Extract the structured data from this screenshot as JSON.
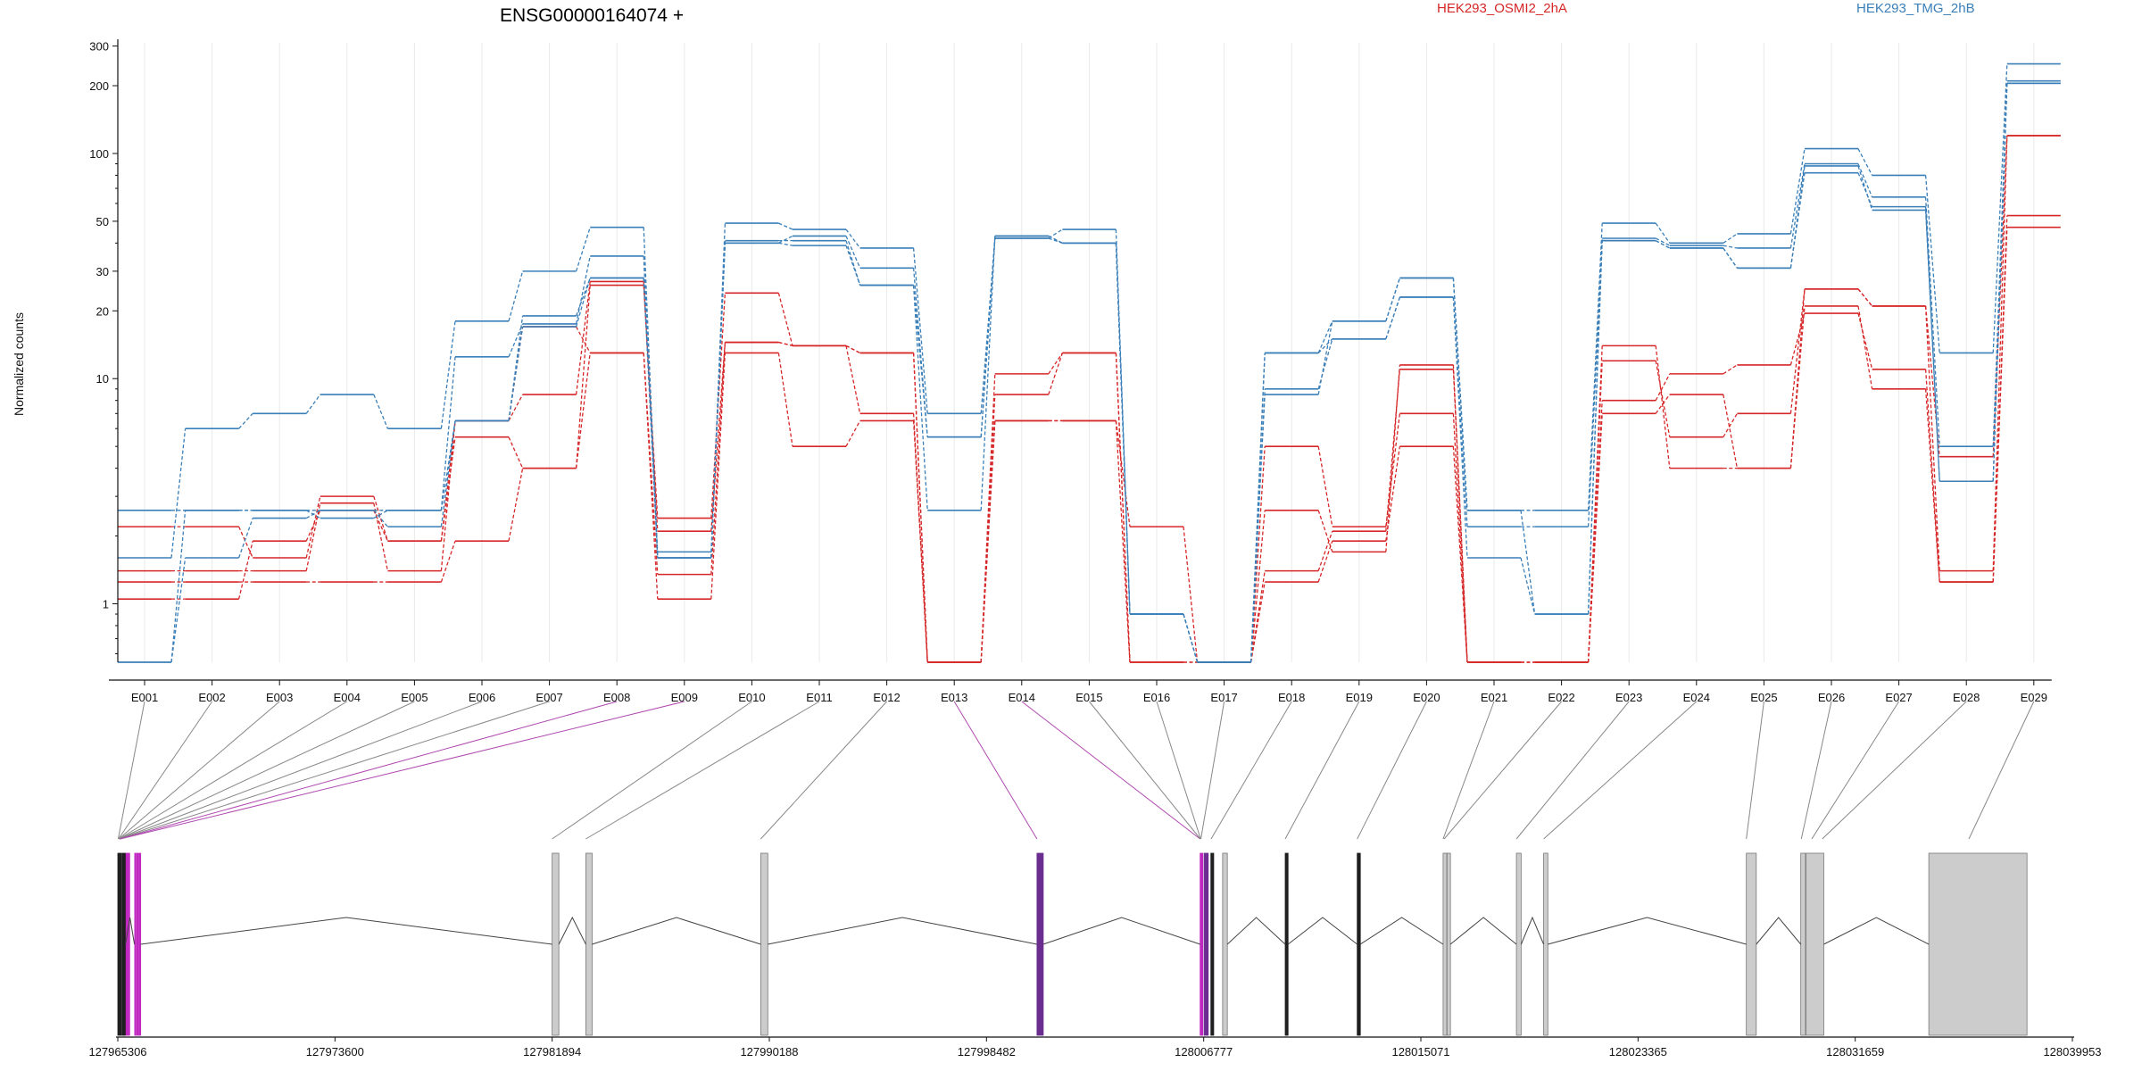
{
  "chart_data": {
    "type": "line",
    "title": "ENSG00000164074 +",
    "ylabel": "Normalized counts",
    "yscale": "log",
    "ylim": [
      0.55,
      310
    ],
    "yticks": [
      1,
      10,
      20,
      30,
      50,
      100,
      200,
      300
    ],
    "grid": "vertical",
    "legend": [
      {
        "name": "HEK293_OSMI2_2hA",
        "color": "#d62728"
      },
      {
        "name": "HEK293_TMG_2hB",
        "color": "#3a7fb8"
      }
    ],
    "categories": [
      "E001",
      "E002",
      "E003",
      "E004",
      "E005",
      "E006",
      "E007",
      "E008",
      "E009",
      "E010",
      "E011",
      "E012",
      "E013",
      "E014",
      "E015",
      "E016",
      "E017",
      "E018",
      "E019",
      "E020",
      "E021",
      "E022",
      "E023",
      "E024",
      "E025",
      "E026",
      "E027",
      "E028",
      "E029"
    ],
    "series": [
      {
        "group": "HEK293_OSMI2_2hA",
        "color": "#d62728",
        "values": [
          2.2,
          2.2,
          1.6,
          3.0,
          1.9,
          5.5,
          4.0,
          26,
          2.4,
          24,
          14,
          13,
          0.55,
          6.5,
          6.5,
          2.2,
          0.55,
          5.0,
          2.2,
          7.0,
          0.55,
          0.55,
          12,
          5.5,
          7.0,
          25,
          21,
          4.5,
          120
        ]
      },
      {
        "group": "HEK293_OSMI2_2hA",
        "color": "#d62728",
        "values": [
          1.25,
          1.25,
          1.25,
          1.25,
          1.25,
          1.9,
          4.0,
          13,
          1.05,
          13,
          5.0,
          6.5,
          0.55,
          6.5,
          6.5,
          0.55,
          0.55,
          1.25,
          1.9,
          5.0,
          0.55,
          0.55,
          7.0,
          8.5,
          4.0,
          21,
          9.0,
          1.25,
          53
        ]
      },
      {
        "group": "HEK293_OSMI2_2hA",
        "color": "#d62728",
        "values": [
          1.05,
          1.05,
          1.9,
          2.6,
          1.9,
          6.5,
          8.5,
          27,
          2.1,
          14.5,
          14,
          7.0,
          0.55,
          10.5,
          13,
          0.55,
          0.55,
          2.6,
          1.7,
          11.5,
          0.55,
          0.55,
          8.0,
          10.5,
          11.5,
          19.5,
          11,
          1.25,
          47
        ]
      },
      {
        "group": "HEK293_OSMI2_2hA",
        "color": "#d62728",
        "values": [
          1.4,
          1.4,
          1.4,
          2.8,
          1.4,
          6.5,
          17,
          13,
          1.35,
          14.5,
          14,
          13,
          0.55,
          8.5,
          13,
          0.55,
          0.55,
          1.4,
          2.1,
          11,
          0.55,
          0.55,
          14,
          4.0,
          4.0,
          25,
          21,
          1.4,
          120
        ]
      },
      {
        "group": "HEK293_TMG_2hB",
        "color": "#3a7fb8",
        "values": [
          1.6,
          6.0,
          7.0,
          8.5,
          6.0,
          18,
          30,
          47,
          1.6,
          49,
          46,
          38,
          7.0,
          42,
          46,
          0.9,
          0.55,
          8.5,
          18,
          28,
          2.6,
          2.6,
          49,
          40,
          44,
          105,
          80,
          13,
          250
        ]
      },
      {
        "group": "HEK293_TMG_2hB",
        "color": "#3a7fb8",
        "values": [
          2.6,
          2.6,
          2.6,
          2.6,
          2.6,
          12.5,
          17.5,
          35,
          1.6,
          40,
          43,
          31,
          5.5,
          43,
          40,
          0.9,
          0.55,
          13,
          18,
          28,
          2.6,
          0.9,
          42,
          39,
          38,
          90,
          64,
          5.0,
          210
        ]
      },
      {
        "group": "HEK293_TMG_2hB",
        "color": "#3a7fb8",
        "values": [
          0.55,
          2.6,
          2.6,
          2.4,
          2.6,
          6.5,
          17,
          28,
          1.6,
          41,
          41,
          26,
          2.6,
          43,
          40,
          0.9,
          0.55,
          13,
          15,
          23,
          1.6,
          0.9,
          41,
          38,
          31,
          88,
          56,
          3.5,
          205
        ]
      },
      {
        "group": "HEK293_TMG_2hB",
        "color": "#3a7fb8",
        "values": [
          0.55,
          1.6,
          2.4,
          2.6,
          2.2,
          6.5,
          19,
          28,
          1.7,
          40,
          39,
          26,
          5.5,
          42,
          40,
          0.9,
          0.55,
          9.0,
          15,
          23,
          2.2,
          2.2,
          41,
          38,
          31,
          82,
          58,
          3.5,
          205
        ]
      }
    ]
  },
  "gene_model": {
    "start_label": "127965306",
    "end_label": "128039953",
    "coord_ticks": [
      "127965306",
      "127973600",
      "127981894",
      "127990188",
      "127998482",
      "128006777",
      "128015071",
      "128023365",
      "128031659",
      "128039953"
    ]
  }
}
